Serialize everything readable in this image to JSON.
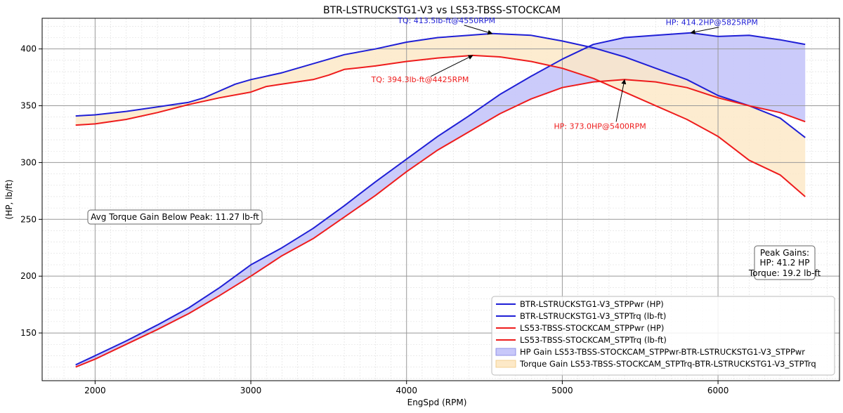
{
  "chart_data": {
    "type": "line",
    "title": "BTR-LSTRUCKSTG1-V3 vs LS53-TBSS-STOCKCAM",
    "xlabel": "EngSpd (RPM)",
    "ylabel": "(HP, lb/ft)",
    "xlim": [
      1660,
      6780
    ],
    "ylim": [
      108,
      427
    ],
    "xticks": [
      2000,
      3000,
      4000,
      5000,
      6000
    ],
    "yticks": [
      150,
      200,
      250,
      300,
      350,
      400
    ],
    "grid": true,
    "colors": {
      "blue": "#1f1fd6",
      "red": "#ee1c1c",
      "hp_fill": "#c8c8fa",
      "tq_fill": "#fde9c8"
    },
    "series": [
      {
        "name": "BTR-LSTRUCKSTG1-V3_STPPwr (HP)",
        "color": "#1f1fd6",
        "x": [
          1875,
          2000,
          2200,
          2400,
          2600,
          2800,
          3000,
          3200,
          3400,
          3600,
          3800,
          4000,
          4200,
          4400,
          4600,
          4800,
          5000,
          5200,
          5400,
          5600,
          5825,
          6000,
          6200,
          6400,
          6560
        ],
        "y": [
          122,
          130,
          143,
          157,
          172,
          190,
          210,
          225,
          242,
          262,
          283,
          303,
          323,
          341,
          360,
          376,
          391,
          404,
          410,
          412,
          414.2,
          411,
          412,
          408,
          404
        ]
      },
      {
        "name": "BTR-LSTRUCKSTG1-V3_STPTrq (lb-ft)",
        "color": "#1f1fd6",
        "x": [
          1875,
          2000,
          2200,
          2400,
          2600,
          2700,
          2800,
          2900,
          3000,
          3200,
          3400,
          3600,
          3800,
          4000,
          4200,
          4400,
          4550,
          4800,
          5000,
          5200,
          5400,
          5600,
          5800,
          6000,
          6200,
          6400,
          6560
        ],
        "y": [
          341,
          342,
          345,
          349,
          353,
          357,
          363,
          369,
          373,
          379,
          387,
          395,
          400,
          406,
          410,
          412,
          413.5,
          412,
          407,
          401,
          393,
          383,
          373,
          359,
          350,
          339,
          322
        ]
      },
      {
        "name": "LS53-TBSS-STOCKCAM_STPPwr (HP)",
        "color": "#ee1c1c",
        "x": [
          1875,
          2000,
          2200,
          2400,
          2600,
          2800,
          3000,
          3200,
          3400,
          3600,
          3800,
          4000,
          4200,
          4400,
          4600,
          4800,
          5000,
          5200,
          5400,
          5600,
          5800,
          6000,
          6200,
          6400,
          6560
        ],
        "y": [
          120,
          127,
          140,
          153,
          167,
          183,
          200,
          218,
          233,
          252,
          271,
          292,
          311,
          327,
          343,
          356,
          366,
          371,
          373,
          371,
          366,
          357,
          350,
          344,
          336
        ]
      },
      {
        "name": "LS53-TBSS-STOCKCAM_STPTrq (lb-ft)",
        "color": "#ee1c1c",
        "x": [
          1875,
          2000,
          2200,
          2400,
          2600,
          2800,
          3000,
          3100,
          3200,
          3400,
          3500,
          3600,
          3800,
          4000,
          4200,
          4425,
          4600,
          4800,
          5000,
          5200,
          5400,
          5600,
          5800,
          6000,
          6200,
          6400,
          6560
        ],
        "y": [
          333,
          334,
          338,
          344,
          351,
          357,
          362,
          367,
          369,
          373,
          377,
          382,
          385,
          389,
          392,
          394.3,
          393,
          389,
          383,
          374,
          362,
          350,
          338,
          323,
          302,
          289,
          270
        ]
      }
    ],
    "fills": [
      {
        "name": "HP Gain LS53-TBSS-STOCKCAM_STPPwr-BTR-LSTRUCKSTG1-V3_STPPwr",
        "between": [
          0,
          2
        ],
        "color": "#c8c8fa"
      },
      {
        "name": "Torque Gain LS53-TBSS-STOCKCAM_STPTrq-BTR-LSTRUCKSTG1-V3_STPTrq",
        "between": [
          1,
          3
        ],
        "color": "#fde9c8"
      }
    ],
    "annotations": [
      {
        "text": "TQ: 413.5lb-ft@4550RPM",
        "color": "#1f1fd6",
        "point": [
          4550,
          413.5
        ]
      },
      {
        "text": "HP: 414.2HP@5825RPM",
        "color": "#1f1fd6",
        "point": [
          5825,
          414.2
        ]
      },
      {
        "text": "TQ: 394.3lb-ft@4425RPM",
        "color": "#ee1c1c",
        "point": [
          4425,
          394.3
        ]
      },
      {
        "text": "HP: 373.0HP@5400RPM",
        "color": "#ee1c1c",
        "point": [
          5400,
          373.0
        ]
      }
    ],
    "textbox_left": "Avg Torque Gain Below Peak: 11.27 lb-ft",
    "textbox_right": [
      "Peak Gains:",
      "HP: 41.2 HP",
      "Torque: 19.2 lb-ft"
    ],
    "legend_position": "lower-right"
  }
}
